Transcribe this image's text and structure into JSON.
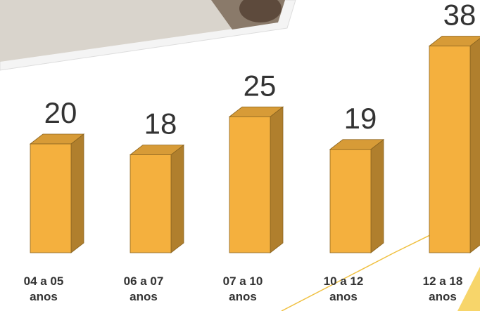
{
  "chart_data": {
    "type": "bar3d",
    "categories": [
      "04 a 05 anos",
      "06 a 07 anos",
      "07 a 10 anos",
      "10 a 12 anos",
      "12 a 18 anos"
    ],
    "values": [
      20,
      18,
      25,
      19,
      38
    ],
    "color": "#f4b03e"
  }
}
